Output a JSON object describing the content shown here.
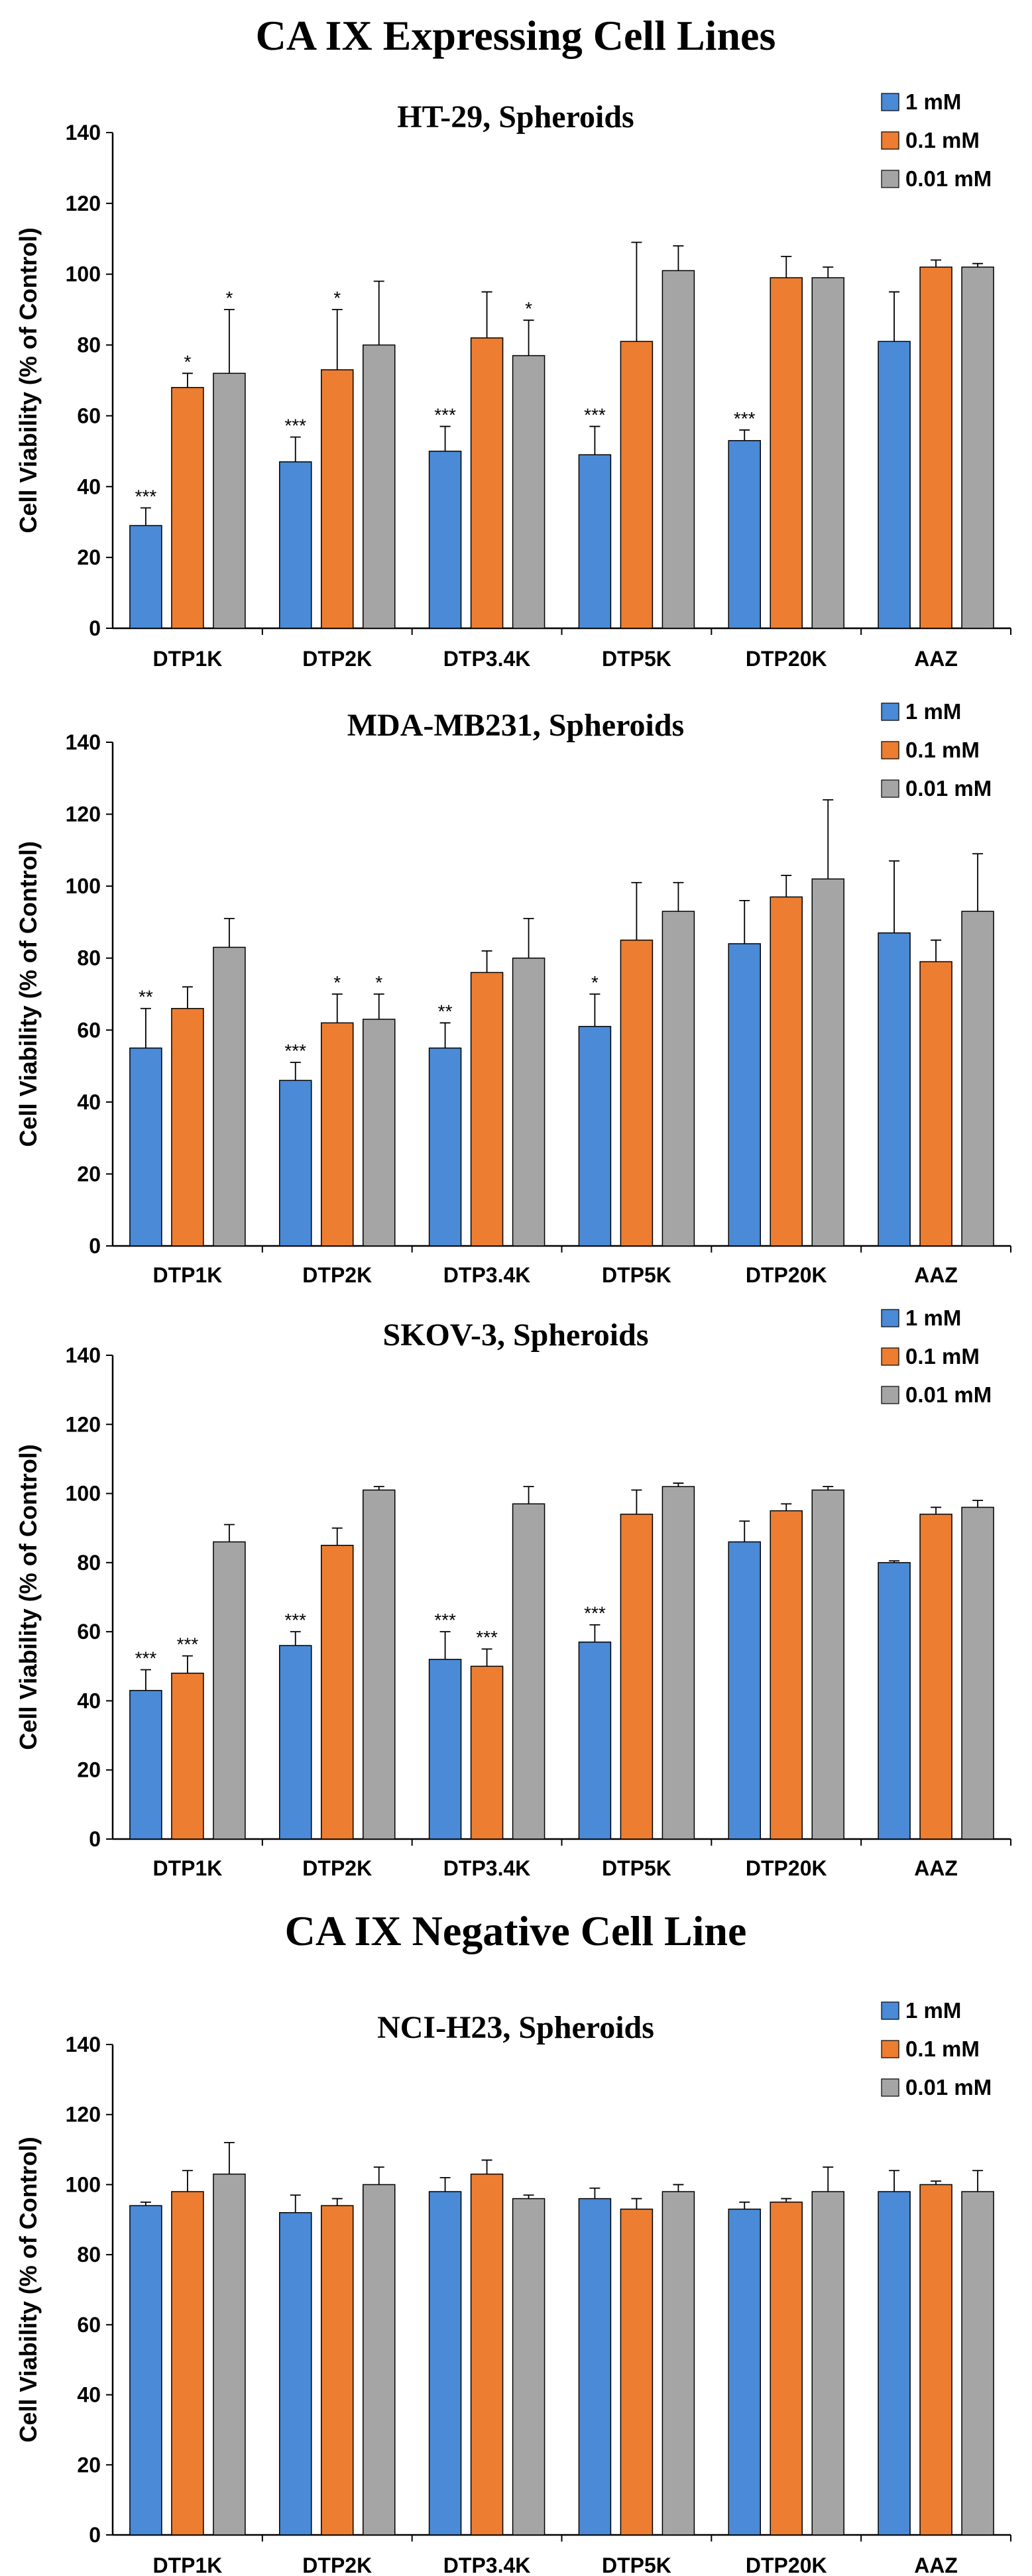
{
  "sections": {
    "expressing_title": "CA IX Expressing Cell Lines",
    "negative_title": "CA IX Negative Cell Line"
  },
  "legend": [
    "1 mM",
    "0.1 mM",
    "0.01 mM"
  ],
  "colors": {
    "series": [
      "#4a8ad6",
      "#ed7d31",
      "#a5a5a5"
    ]
  },
  "chart_data": [
    {
      "type": "bar",
      "title": "HT-29, Spheroids",
      "xlabel": "",
      "ylabel": "Cell Viability  (% of Control)",
      "ylim": [
        0,
        140
      ],
      "yticks": [
        0,
        20,
        40,
        60,
        80,
        100,
        120,
        140
      ],
      "categories": [
        "DTP1K",
        "DTP2K",
        "DTP3.4K",
        "DTP5K",
        "DTP20K",
        "AAZ"
      ],
      "legend_position": "top-right",
      "series": [
        {
          "name": "1 mM",
          "values": [
            29,
            47,
            50,
            49,
            53,
            81
          ],
          "errors": [
            5,
            7,
            7,
            8,
            3,
            14
          ],
          "significance": [
            "***",
            "***",
            "***",
            "***",
            "***",
            ""
          ]
        },
        {
          "name": "0.1 mM",
          "values": [
            68,
            73,
            82,
            81,
            99,
            102
          ],
          "errors": [
            4,
            17,
            13,
            28,
            6,
            2
          ],
          "significance": [
            "*",
            "*",
            "",
            "",
            "",
            ""
          ]
        },
        {
          "name": "0.01 mM",
          "values": [
            72,
            80,
            77,
            101,
            99,
            102
          ],
          "errors": [
            18,
            18,
            10,
            7,
            3,
            1
          ],
          "significance": [
            "*",
            "",
            "*",
            "",
            "",
            ""
          ]
        }
      ]
    },
    {
      "type": "bar",
      "title": "MDA-MB231, Spheroids",
      "xlabel": "",
      "ylabel": "Cell Viability  (% of Control)",
      "ylim": [
        0,
        140
      ],
      "yticks": [
        0,
        20,
        40,
        60,
        80,
        100,
        120,
        140
      ],
      "categories": [
        "DTP1K",
        "DTP2K",
        "DTP3.4K",
        "DTP5K",
        "DTP20K",
        "AAZ"
      ],
      "legend_position": "top-right",
      "series": [
        {
          "name": "1 mM",
          "values": [
            55,
            46,
            55,
            61,
            84,
            87
          ],
          "errors": [
            11,
            5,
            7,
            9,
            12,
            20
          ],
          "significance": [
            "**",
            "***",
            "**",
            "*",
            "",
            ""
          ]
        },
        {
          "name": "0.1 mM",
          "values": [
            66,
            62,
            76,
            85,
            97,
            79
          ],
          "errors": [
            6,
            8,
            6,
            16,
            6,
            6
          ],
          "significance": [
            "",
            "*",
            "",
            "",
            "",
            ""
          ]
        },
        {
          "name": "0.01 mM",
          "values": [
            83,
            63,
            80,
            93,
            102,
            93
          ],
          "errors": [
            8,
            7,
            11,
            8,
            22,
            16
          ],
          "significance": [
            "",
            "*",
            "",
            "",
            "",
            ""
          ]
        }
      ]
    },
    {
      "type": "bar",
      "title": "SKOV-3, Spheroids",
      "xlabel": "",
      "ylabel": "Cell Viability  (% of Control)",
      "ylim": [
        0,
        140
      ],
      "yticks": [
        0,
        20,
        40,
        60,
        80,
        100,
        120,
        140
      ],
      "categories": [
        "DTP1K",
        "DTP2K",
        "DTP3.4K",
        "DTP5K",
        "DTP20K",
        "AAZ"
      ],
      "legend_position": "top-right",
      "series": [
        {
          "name": "1 mM",
          "values": [
            43,
            56,
            52,
            57,
            86,
            80
          ],
          "errors": [
            6,
            4,
            8,
            5,
            6,
            0.5
          ],
          "significance": [
            "***",
            "***",
            "***",
            "***",
            "",
            ""
          ]
        },
        {
          "name": "0.1 mM",
          "values": [
            48,
            85,
            50,
            94,
            95,
            94
          ],
          "errors": [
            5,
            5,
            5,
            7,
            2,
            2
          ],
          "significance": [
            "***",
            "",
            "***",
            "",
            "",
            ""
          ]
        },
        {
          "name": "0.01 mM",
          "values": [
            86,
            101,
            97,
            102,
            101,
            96
          ],
          "errors": [
            5,
            1,
            5,
            1,
            1,
            2
          ],
          "significance": [
            "",
            "",
            "",
            "",
            "",
            ""
          ]
        }
      ]
    },
    {
      "type": "bar",
      "title": "NCI-H23, Spheroids",
      "xlabel": "",
      "ylabel": "Cell Viability  (% of Control)",
      "ylim": [
        0,
        140
      ],
      "yticks": [
        0,
        20,
        40,
        60,
        80,
        100,
        120,
        140
      ],
      "categories": [
        "DTP1K",
        "DTP2K",
        "DTP3.4K",
        "DTP5K",
        "DTP20K",
        "AAZ"
      ],
      "legend_position": "top-right",
      "series": [
        {
          "name": "1 mM",
          "values": [
            94,
            92,
            98,
            96,
            93,
            98
          ],
          "errors": [
            1,
            5,
            4,
            3,
            2,
            6
          ],
          "significance": [
            "",
            "",
            "",
            "",
            "",
            ""
          ]
        },
        {
          "name": "0.1 mM",
          "values": [
            98,
            94,
            103,
            93,
            95,
            100
          ],
          "errors": [
            6,
            2,
            4,
            3,
            1,
            1
          ],
          "significance": [
            "",
            "",
            "",
            "",
            "",
            ""
          ]
        },
        {
          "name": "0.01 mM",
          "values": [
            103,
            100,
            96,
            98,
            98,
            98
          ],
          "errors": [
            9,
            5,
            1,
            2,
            7,
            6
          ],
          "significance": [
            "",
            "",
            "",
            "",
            "",
            ""
          ]
        }
      ]
    }
  ]
}
